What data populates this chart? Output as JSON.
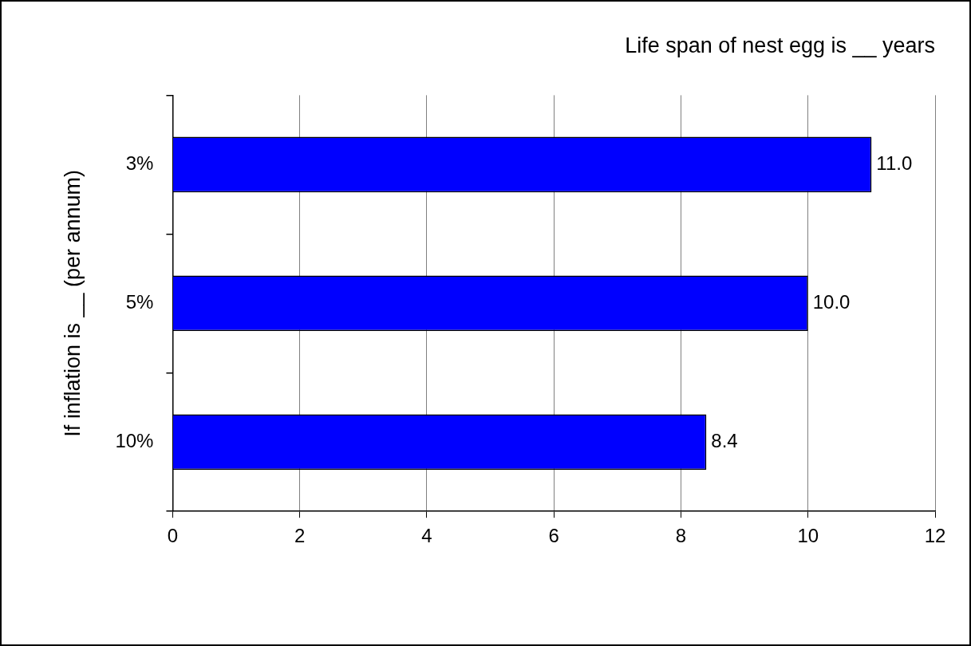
{
  "chart_data": {
    "type": "bar",
    "orientation": "horizontal",
    "title": "Life span of nest egg is __ years",
    "ylabel": "If inflation is __ (per annum)",
    "categories": [
      "3%",
      "5%",
      "10%"
    ],
    "values": [
      11.0,
      10.0,
      8.4
    ],
    "value_labels": [
      "11.0",
      "10.0",
      "8.4"
    ],
    "color": "#0000ff",
    "xlim": [
      0,
      12
    ],
    "xticks": [
      0,
      2,
      4,
      6,
      8,
      10,
      12
    ],
    "grid": "x"
  }
}
